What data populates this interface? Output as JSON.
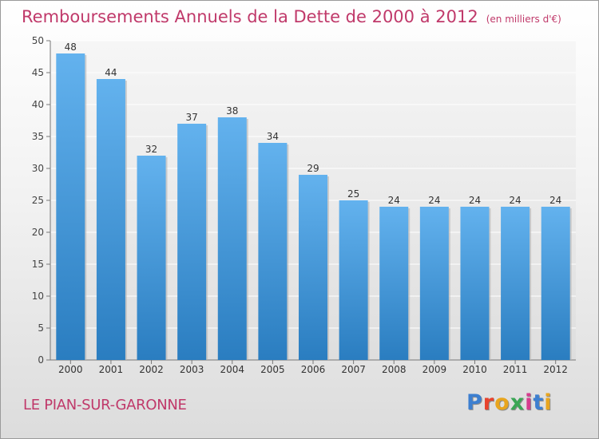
{
  "title": "Remboursements Annuels de la Dette de 2000 à 2012",
  "unit": "(en milliers d'€)",
  "city": "LE PIAN-SUR-GARONNE",
  "logo": {
    "text": "Proxiti",
    "colors": [
      "#3d7fd0",
      "#e8432d",
      "#e8a51e",
      "#3aa655",
      "#d63c8e",
      "#3d7fd0",
      "#e8a51e"
    ]
  },
  "colors": {
    "bar_light": "#63b2ee",
    "bar_dark": "#2a7dc0",
    "title": "#c0396a",
    "axis": "#777777"
  },
  "chart_data": {
    "type": "bar",
    "categories": [
      "2000",
      "2001",
      "2002",
      "2003",
      "2004",
      "2005",
      "2006",
      "2007",
      "2008",
      "2009",
      "2010",
      "2011",
      "2012"
    ],
    "values": [
      48,
      44,
      32,
      37,
      38,
      34,
      29,
      25,
      24,
      24,
      24,
      24,
      24
    ],
    "ylim": [
      0,
      50
    ],
    "yticks": [
      0,
      5,
      10,
      15,
      20,
      25,
      30,
      35,
      40,
      45,
      50
    ],
    "grid": true
  }
}
